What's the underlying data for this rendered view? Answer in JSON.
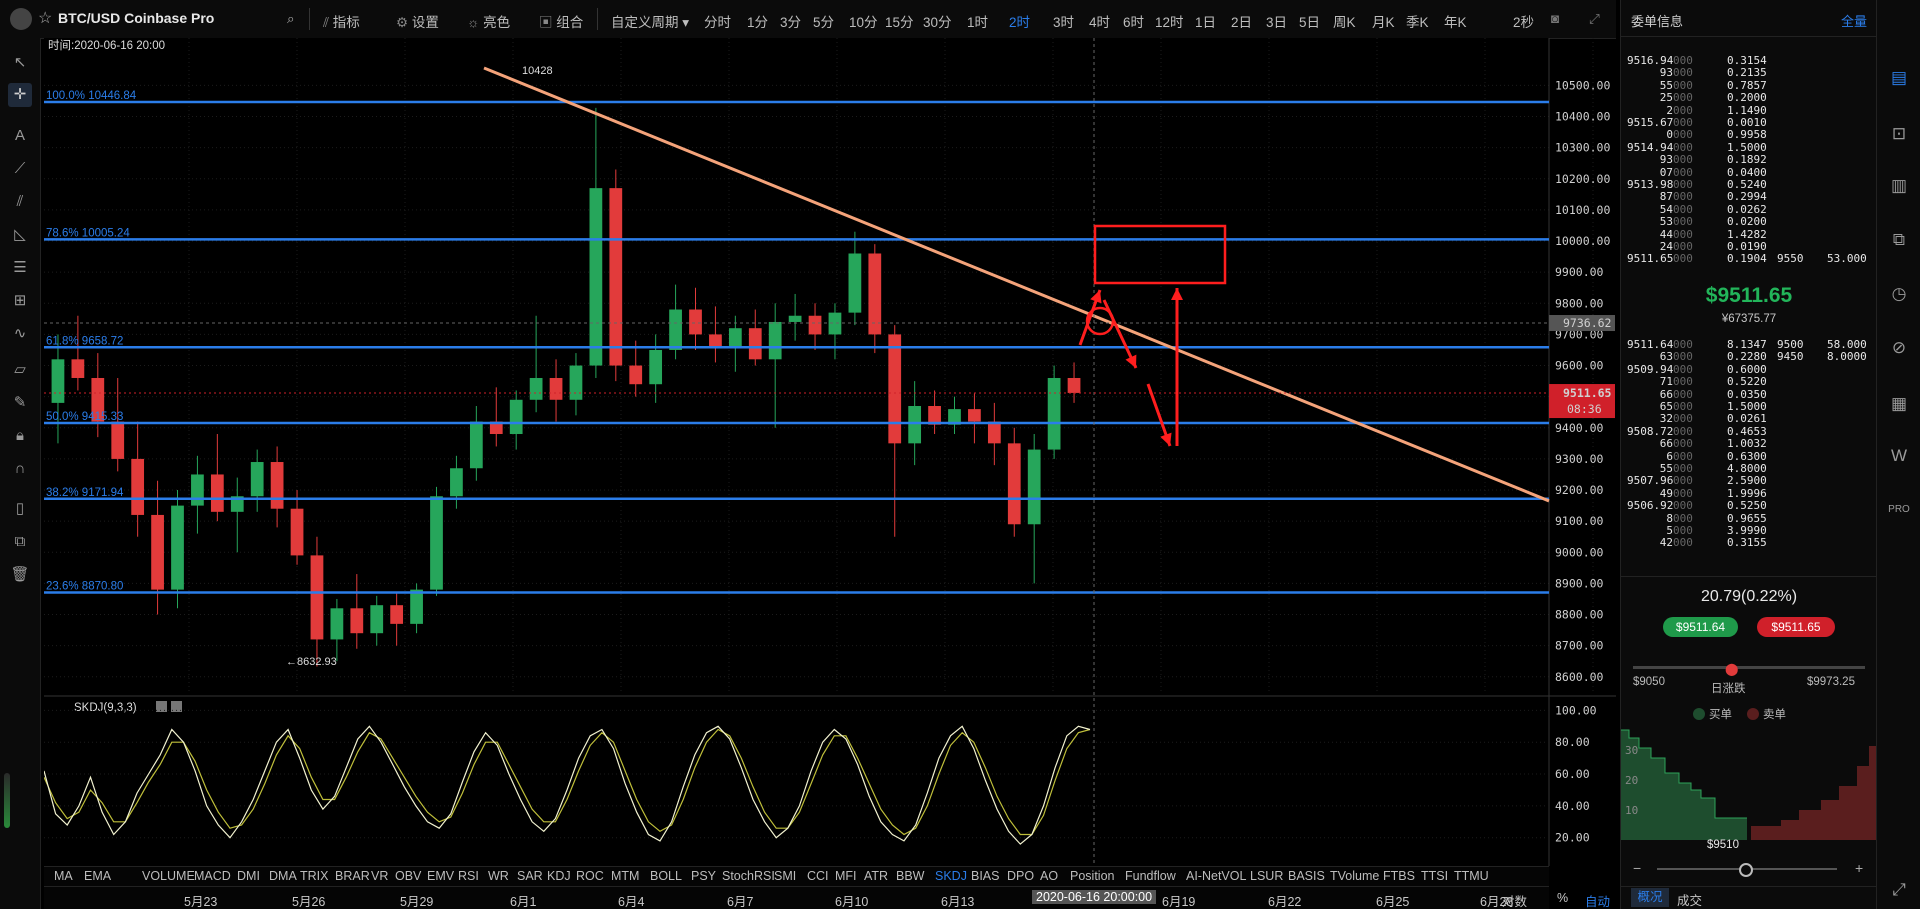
{
  "topbar": {
    "symbol": "BTC/USD Coinbase Pro",
    "items": [
      "指标",
      "设置",
      "亮色",
      "组合"
    ],
    "custom_period": "自定义周期",
    "periods": [
      "分时",
      "1分",
      "3分",
      "5分",
      "10分",
      "15分",
      "30分",
      "1时",
      "2时",
      "3时",
      "4时",
      "6时",
      "12时",
      "1日",
      "2日",
      "3日",
      "5日",
      "周K",
      "月K",
      "季K",
      "年K"
    ],
    "active_period": "2时",
    "refresh": "2秒"
  },
  "chart": {
    "time_label": "时间:2020-06-16 20:00",
    "price_axis": [
      "10500.00",
      "10400.00",
      "10300.00",
      "10200.00",
      "10100.00",
      "10000.00",
      "9900.00",
      "9800.00",
      "9700.00",
      "9600.00",
      "9500.00",
      "9400.00",
      "9300.00",
      "9200.00",
      "9100.00",
      "9000.00",
      "8900.00",
      "8800.00",
      "8700.00",
      "8600.00"
    ],
    "fib_levels": [
      {
        "label": "100.0% 10446.84",
        "price": 10446.84
      },
      {
        "label": "78.6% 10005.24",
        "price": 10005.24
      },
      {
        "label": "61.8% 9658.72",
        "price": 9658.72
      },
      {
        "label": "50.0% 9415.33",
        "price": 9415.33
      },
      {
        "label": "38.2% 9171.94",
        "price": 9171.94
      },
      {
        "label": "23.6% 8870.80",
        "price": 8870.8
      }
    ],
    "high_label": "10428",
    "low_label": "←8632.93",
    "crosshair_price": "9736.62",
    "last_price": "9511.65",
    "countdown": "08:36",
    "colors": {
      "up": "#26a65b",
      "down": "#e23b3b",
      "fib": "#2b7de9",
      "trend": "#f4a37a",
      "annotation": "#ff1e1e",
      "crosshair_tag": "#555555",
      "price_tag": "#d0202a"
    },
    "candles_approx": [
      [
        9480,
        9700,
        9350,
        9620
      ],
      [
        9620,
        9760,
        9520,
        9560
      ],
      [
        9560,
        9640,
        9370,
        9420
      ],
      [
        9420,
        9560,
        9260,
        9300
      ],
      [
        9300,
        9420,
        9050,
        9120
      ],
      [
        9120,
        9230,
        8800,
        8880
      ],
      [
        8880,
        9200,
        8820,
        9150
      ],
      [
        9150,
        9310,
        9060,
        9250
      ],
      [
        9250,
        9380,
        9100,
        9130
      ],
      [
        9130,
        9240,
        9000,
        9180
      ],
      [
        9180,
        9330,
        9130,
        9290
      ],
      [
        9290,
        9340,
        9080,
        9140
      ],
      [
        9140,
        9200,
        8960,
        8990
      ],
      [
        8990,
        9050,
        8633,
        8720
      ],
      [
        8720,
        8850,
        8650,
        8820
      ],
      [
        8820,
        8930,
        8690,
        8740
      ],
      [
        8740,
        8860,
        8700,
        8830
      ],
      [
        8830,
        8870,
        8700,
        8770
      ],
      [
        8770,
        8900,
        8740,
        8880
      ],
      [
        8880,
        9210,
        8860,
        9180
      ],
      [
        9180,
        9310,
        9140,
        9270
      ],
      [
        9270,
        9470,
        9230,
        9420
      ],
      [
        9420,
        9530,
        9340,
        9380
      ],
      [
        9380,
        9520,
        9330,
        9490
      ],
      [
        9490,
        9760,
        9450,
        9560
      ],
      [
        9560,
        9620,
        9420,
        9490
      ],
      [
        9490,
        9640,
        9440,
        9600
      ],
      [
        9600,
        10428,
        9560,
        10170
      ],
      [
        10170,
        10230,
        9550,
        9600
      ],
      [
        9600,
        9680,
        9500,
        9540
      ],
      [
        9540,
        9700,
        9480,
        9650
      ],
      [
        9650,
        9860,
        9620,
        9780
      ],
      [
        9780,
        9850,
        9650,
        9700
      ],
      [
        9700,
        9790,
        9610,
        9660
      ],
      [
        9660,
        9760,
        9580,
        9720
      ],
      [
        9720,
        9780,
        9600,
        9620
      ],
      [
        9620,
        9800,
        9400,
        9740
      ],
      [
        9740,
        9830,
        9680,
        9760
      ],
      [
        9760,
        9800,
        9650,
        9700
      ],
      [
        9700,
        9800,
        9620,
        9770
      ],
      [
        9770,
        10030,
        9730,
        9960
      ],
      [
        9960,
        9990,
        9640,
        9700
      ],
      [
        9700,
        9730,
        9050,
        9350
      ],
      [
        9350,
        9550,
        9280,
        9470
      ],
      [
        9470,
        9520,
        9380,
        9410
      ],
      [
        9410,
        9500,
        9380,
        9460
      ],
      [
        9460,
        9510,
        9350,
        9420
      ],
      [
        9420,
        9480,
        9280,
        9350
      ],
      [
        9350,
        9400,
        9050,
        9090
      ],
      [
        9090,
        9380,
        8900,
        9330
      ],
      [
        9330,
        9600,
        9300,
        9560
      ],
      [
        9560,
        9610,
        9480,
        9512
      ]
    ]
  },
  "skdj": {
    "label": "SKDJ(9,3,3)",
    "axis": [
      "100.00",
      "80.00",
      "60.00",
      "40.00",
      "20.00"
    ],
    "k_approx": [
      62,
      35,
      28,
      40,
      58,
      36,
      22,
      30,
      48,
      60,
      72,
      88,
      80,
      62,
      40,
      28,
      20,
      30,
      44,
      62,
      80,
      88,
      70,
      50,
      38,
      46,
      64,
      82,
      90,
      80,
      66,
      52,
      40,
      30,
      26,
      35,
      55,
      74,
      86,
      78,
      60,
      44,
      30,
      24,
      32,
      50,
      70,
      84,
      88,
      76,
      54,
      36,
      22,
      18,
      30,
      52,
      72,
      86,
      90,
      82,
      64,
      44,
      30,
      20,
      26,
      40,
      62,
      80,
      88,
      82,
      66,
      46,
      30,
      22,
      18,
      28,
      48,
      70,
      84,
      90,
      76,
      56,
      38,
      24,
      16,
      22,
      40,
      64,
      84,
      90,
      88
    ],
    "d_approx": [
      58,
      42,
      32,
      36,
      50,
      42,
      30,
      30,
      42,
      55,
      66,
      80,
      80,
      68,
      50,
      36,
      26,
      28,
      38,
      54,
      72,
      84,
      76,
      58,
      44,
      44,
      58,
      74,
      86,
      82,
      70,
      58,
      46,
      36,
      30,
      33,
      48,
      66,
      80,
      80,
      66,
      52,
      38,
      30,
      30,
      44,
      62,
      78,
      86,
      80,
      62,
      44,
      30,
      24,
      28,
      44,
      64,
      80,
      88,
      84,
      70,
      52,
      36,
      26,
      26,
      36,
      54,
      72,
      84,
      84,
      70,
      54,
      38,
      28,
      22,
      26,
      40,
      60,
      78,
      86,
      80,
      64,
      46,
      32,
      22,
      22,
      34,
      56,
      76,
      86,
      88
    ]
  },
  "indicators": [
    "MA",
    "EMA",
    "VOLUME",
    "MACD",
    "DMI",
    "DMA",
    "TRIX",
    "BRAR",
    "VR",
    "OBV",
    "EMV",
    "RSI",
    "WR",
    "SAR",
    "KDJ",
    "ROC",
    "MTM",
    "BOLL",
    "PSY",
    "StochRSI",
    "SMI",
    "CCI",
    "MFI",
    "ATR",
    "BBW",
    "SKDJ",
    "BIAS",
    "DPO",
    "AO",
    "Position",
    "Fundflow",
    "AI-NetVOL",
    "LSUR",
    "BASIS",
    "TVolume",
    "FTBS",
    "TTSI",
    "TTMU"
  ],
  "active_indicator": "SKDJ",
  "dates": [
    "5月23",
    "5月26",
    "5月29",
    "6月1",
    "6月4",
    "6月7",
    "6月10",
    "6月13",
    "6月19",
    "6月22",
    "6月25",
    "6月28"
  ],
  "date_highlight": "2020-06-16 20:00:00",
  "axis_controls": [
    "对数",
    "%",
    "自动"
  ],
  "orderbook": {
    "title": "委单信息",
    "full": "全量",
    "asks": [
      [
        "9516.94",
        "000",
        "0.3154"
      ],
      [
        "93",
        "000",
        "0.2135"
      ],
      [
        "55",
        "000",
        "0.7857"
      ],
      [
        "25",
        "000",
        "0.2000"
      ],
      [
        "2",
        "000",
        "1.1490"
      ],
      [
        "9515.67",
        "000",
        "0.0010"
      ],
      [
        "0",
        "000",
        "0.9958"
      ],
      [
        "9514.94",
        "000",
        "1.5000"
      ],
      [
        "93",
        "000",
        "0.1892"
      ],
      [
        "07",
        "000",
        "0.0400"
      ],
      [
        "9513.98",
        "000",
        "0.5240"
      ],
      [
        "87",
        "000",
        "0.2994"
      ],
      [
        "54",
        "000",
        "0.0262"
      ],
      [
        "53",
        "000",
        "0.0200"
      ],
      [
        "44",
        "000",
        "1.4282"
      ],
      [
        "24",
        "000",
        "0.0190"
      ],
      [
        "9511.65",
        "000",
        "0.1904"
      ]
    ],
    "ask_extra": [
      "9550",
      "53.000"
    ],
    "last_price": "$9511.65",
    "last_cny": "¥67375.77",
    "bids": [
      [
        "9511.64",
        "000",
        "8.1347"
      ],
      [
        "63",
        "000",
        "0.2280"
      ],
      [
        "9509.94",
        "000",
        "0.6000"
      ],
      [
        "71",
        "000",
        "0.5220"
      ],
      [
        "66",
        "000",
        "0.0350"
      ],
      [
        "65",
        "000",
        "1.5000"
      ],
      [
        "32",
        "000",
        "0.0261"
      ],
      [
        "9508.72",
        "000",
        "0.4653"
      ],
      [
        "66",
        "000",
        "1.0032"
      ],
      [
        "6",
        "000",
        "0.6300"
      ],
      [
        "55",
        "000",
        "4.8000"
      ],
      [
        "9507.96",
        "000",
        "2.5900"
      ],
      [
        "49",
        "000",
        "1.9996"
      ],
      [
        "9506.92",
        "000",
        "0.5250"
      ],
      [
        "8",
        "000",
        "0.9655"
      ],
      [
        "5",
        "000",
        "3.9990"
      ],
      [
        "42",
        "000",
        "0.3155"
      ]
    ],
    "bid_extra": [
      [
        "9500",
        "58.000"
      ],
      [
        "9450",
        "8.0000"
      ]
    ],
    "change": "20.79(0.22%)",
    "bid_button": "$9511.64",
    "ask_button": "$9511.65",
    "range_low": "$9050",
    "range_high": "$9973.25",
    "range_label": "日涨跌",
    "legend_buy": "买单",
    "legend_sell": "卖单",
    "depth_axis": [
      "30",
      "20",
      "10"
    ],
    "depth_price": "$9510",
    "zoom_minus": "−",
    "zoom_plus": "+",
    "tabs": [
      "概况",
      "成交"
    ],
    "active_tab": "概况"
  }
}
